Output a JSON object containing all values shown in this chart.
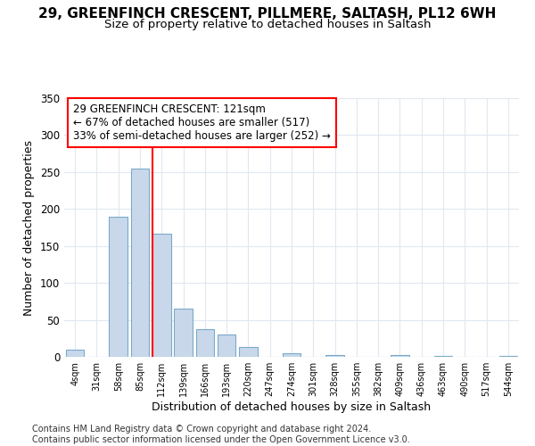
{
  "title1": "29, GREENFINCH CRESCENT, PILLMERE, SALTASH, PL12 6WH",
  "title2": "Size of property relative to detached houses in Saltash",
  "xlabel": "Distribution of detached houses by size in Saltash",
  "ylabel": "Number of detached properties",
  "bin_labels": [
    "4sqm",
    "31sqm",
    "58sqm",
    "85sqm",
    "112sqm",
    "139sqm",
    "166sqm",
    "193sqm",
    "220sqm",
    "247sqm",
    "274sqm",
    "301sqm",
    "328sqm",
    "355sqm",
    "382sqm",
    "409sqm",
    "436sqm",
    "463sqm",
    "490sqm",
    "517sqm",
    "544sqm"
  ],
  "bar_values": [
    10,
    0,
    190,
    255,
    167,
    65,
    37,
    30,
    13,
    0,
    5,
    0,
    2,
    0,
    0,
    2,
    0,
    1,
    0,
    0,
    1
  ],
  "bar_color": "#c8d8ea",
  "bar_edge_color": "#7aaaca",
  "vline_color": "red",
  "vline_pos": 4.0,
  "annotation_text": "29 GREENFINCH CRESCENT: 121sqm\n← 67% of detached houses are smaller (517)\n33% of semi-detached houses are larger (252) →",
  "annotation_box_color": "white",
  "annotation_box_edge_color": "red",
  "ylim": [
    0,
    350
  ],
  "yticks": [
    0,
    50,
    100,
    150,
    200,
    250,
    300,
    350
  ],
  "bg_color": "#ffffff",
  "plot_bg_color": "#ffffff",
  "grid_color": "#e0e8f0",
  "footer": "Contains HM Land Registry data © Crown copyright and database right 2024.\nContains public sector information licensed under the Open Government Licence v3.0.",
  "title1_fontsize": 11,
  "title2_fontsize": 9.5,
  "xlabel_fontsize": 9,
  "ylabel_fontsize": 9,
  "footer_fontsize": 7
}
